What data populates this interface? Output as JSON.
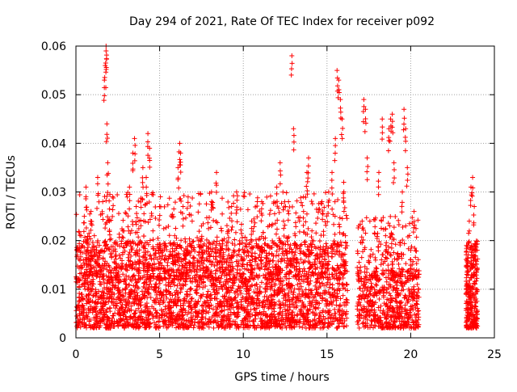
{
  "chart_data": {
    "type": "scatter",
    "title": "Day 294 of 2021, Rate Of TEC Index for receiver p092",
    "xlabel": "GPS time / hours",
    "ylabel": "ROTI / TECUs",
    "xlim": [
      0,
      25
    ],
    "ylim": [
      0,
      0.06
    ],
    "xticks": [
      0,
      5,
      10,
      15,
      20,
      25
    ],
    "xtick_labels": [
      "0",
      "5",
      "10",
      "15",
      "20",
      "25"
    ],
    "yticks": [
      0,
      0.01,
      0.02,
      0.03,
      0.04,
      0.05,
      0.06
    ],
    "ytick_labels": [
      "0",
      "0.01",
      "0.02",
      "0.03",
      "0.04",
      "0.05",
      "0.06"
    ],
    "grid": true,
    "marker": "plus",
    "color": "#ff0000",
    "series": [
      {
        "points": [
          [
            0.1,
            0.004
          ],
          [
            0.2,
            0.006
          ],
          [
            0.2,
            0.012
          ],
          [
            0.3,
            0.021
          ],
          [
            0.4,
            0.008
          ],
          [
            0.5,
            0.015
          ],
          [
            0.5,
            0.025
          ],
          [
            0.6,
            0.031
          ],
          [
            0.7,
            0.018
          ],
          [
            0.8,
            0.009
          ],
          [
            0.9,
            0.026
          ],
          [
            1.0,
            0.013
          ],
          [
            1.1,
            0.021
          ],
          [
            1.2,
            0.007
          ],
          [
            1.3,
            0.033
          ],
          [
            1.4,
            0.019
          ],
          [
            1.5,
            0.011
          ],
          [
            1.6,
            0.028
          ],
          [
            1.7,
            0.053
          ],
          [
            1.75,
            0.056
          ],
          [
            1.8,
            0.059
          ],
          [
            1.8,
            0.06
          ],
          [
            1.85,
            0.044
          ],
          [
            1.9,
            0.036
          ],
          [
            2.0,
            0.024
          ],
          [
            2.1,
            0.012
          ],
          [
            2.2,
            0.029
          ],
          [
            2.4,
            0.017
          ],
          [
            2.6,
            0.008
          ],
          [
            2.8,
            0.022
          ],
          [
            3.0,
            0.014
          ],
          [
            3.2,
            0.031
          ],
          [
            3.4,
            0.038
          ],
          [
            3.5,
            0.041
          ],
          [
            3.6,
            0.027
          ],
          [
            3.8,
            0.016
          ],
          [
            4.0,
            0.035
          ],
          [
            4.2,
            0.033
          ],
          [
            4.3,
            0.042
          ],
          [
            4.4,
            0.039
          ],
          [
            4.6,
            0.022
          ],
          [
            4.8,
            0.011
          ],
          [
            5.0,
            0.027
          ],
          [
            5.3,
            0.016
          ],
          [
            5.6,
            0.009
          ],
          [
            5.9,
            0.021
          ],
          [
            6.1,
            0.035
          ],
          [
            6.2,
            0.04
          ],
          [
            6.25,
            0.038
          ],
          [
            6.4,
            0.027
          ],
          [
            6.6,
            0.017
          ],
          [
            6.9,
            0.008
          ],
          [
            7.2,
            0.014
          ],
          [
            7.5,
            0.023
          ],
          [
            7.8,
            0.018
          ],
          [
            8.1,
            0.03
          ],
          [
            8.4,
            0.034
          ],
          [
            8.7,
            0.022
          ],
          [
            9.0,
            0.012
          ],
          [
            9.3,
            0.027
          ],
          [
            9.6,
            0.03
          ],
          [
            9.9,
            0.016
          ],
          [
            10.2,
            0.009
          ],
          [
            10.5,
            0.024
          ],
          [
            10.8,
            0.011
          ],
          [
            11.1,
            0.028
          ],
          [
            11.4,
            0.019
          ],
          [
            11.7,
            0.013
          ],
          [
            12.0,
            0.031
          ],
          [
            12.2,
            0.036
          ],
          [
            12.4,
            0.024
          ],
          [
            12.7,
            0.028
          ],
          [
            12.9,
            0.058
          ],
          [
            13.0,
            0.043
          ],
          [
            13.1,
            0.021
          ],
          [
            13.3,
            0.012
          ],
          [
            13.6,
            0.026
          ],
          [
            13.8,
            0.034
          ],
          [
            13.9,
            0.037
          ],
          [
            14.1,
            0.022
          ],
          [
            14.4,
            0.013
          ],
          [
            14.7,
            0.028
          ],
          [
            14.9,
            0.018
          ],
          [
            15.1,
            0.03
          ],
          [
            15.3,
            0.034
          ],
          [
            15.5,
            0.041
          ],
          [
            15.6,
            0.055
          ],
          [
            15.7,
            0.053
          ],
          [
            15.8,
            0.049
          ],
          [
            15.9,
            0.045
          ],
          [
            16.0,
            0.032
          ],
          [
            16.1,
            0.021
          ],
          [
            16.2,
            0.011
          ],
          [
            17.1,
            0.024
          ],
          [
            17.2,
            0.049
          ],
          [
            17.3,
            0.047
          ],
          [
            17.4,
            0.037
          ],
          [
            17.6,
            0.012
          ],
          [
            17.9,
            0.016
          ],
          [
            18.1,
            0.034
          ],
          [
            18.3,
            0.045
          ],
          [
            18.5,
            0.021
          ],
          [
            18.7,
            0.043
          ],
          [
            18.8,
            0.045
          ],
          [
            18.9,
            0.046
          ],
          [
            19.0,
            0.036
          ],
          [
            19.2,
            0.013
          ],
          [
            19.5,
            0.03
          ],
          [
            19.6,
            0.047
          ],
          [
            19.7,
            0.043
          ],
          [
            19.8,
            0.035
          ],
          [
            20.0,
            0.018
          ],
          [
            20.2,
            0.026
          ],
          [
            20.4,
            0.011
          ],
          [
            23.4,
            0.019
          ],
          [
            23.5,
            0.024
          ],
          [
            23.6,
            0.031
          ],
          [
            23.7,
            0.033
          ],
          [
            23.8,
            0.027
          ],
          [
            23.9,
            0.018
          ],
          [
            23.9,
            0.008
          ]
        ],
        "dense_bands": [
          {
            "x0": 0.0,
            "x1": 16.2,
            "ymin": 0.002,
            "ymax": 0.02,
            "n": 2800
          },
          {
            "x0": 0.0,
            "x1": 16.2,
            "ymin": 0.012,
            "ymax": 0.03,
            "n": 700
          },
          {
            "x0": 16.8,
            "x1": 20.5,
            "ymin": 0.002,
            "ymax": 0.014,
            "n": 520
          },
          {
            "x0": 16.8,
            "x1": 20.5,
            "ymin": 0.012,
            "ymax": 0.025,
            "n": 180
          },
          {
            "x0": 23.3,
            "x1": 24.0,
            "ymin": 0.002,
            "ymax": 0.02,
            "n": 260
          }
        ]
      }
    ]
  }
}
